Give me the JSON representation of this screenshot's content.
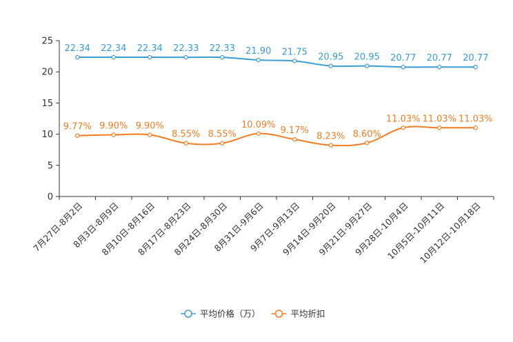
{
  "chart_data": {
    "type": "line",
    "categories": [
      "7月27日-8月2日",
      "8月3日-8月9日",
      "8月10日-8月16日",
      "8月17日-8月23日",
      "8月24日-8月30日",
      "8月31日-9月6日",
      "9月7日-9月13日",
      "9月14日-9月20日",
      "9月21日-9月27日",
      "9月28日-10月4日",
      "10月5日-10月11日",
      "10月12日-10月18日"
    ],
    "series": [
      {
        "name": "平均价格（万）",
        "color": "#3a9bd5",
        "values": [
          22.34,
          22.34,
          22.34,
          22.33,
          22.33,
          21.9,
          21.75,
          20.95,
          20.95,
          20.77,
          20.77,
          20.77
        ],
        "labels": [
          "22.34",
          "22.34",
          "22.34",
          "22.33",
          "22.33",
          "21.90",
          "21.75",
          "20.95",
          "20.95",
          "20.77",
          "20.77",
          "20.77"
        ]
      },
      {
        "name": "平均折扣",
        "color": "#f47b20",
        "values": [
          9.77,
          9.9,
          9.9,
          8.55,
          8.55,
          10.09,
          9.17,
          8.23,
          8.6,
          11.03,
          11.03,
          11.03
        ],
        "labels": [
          "9.77%",
          "9.90%",
          "9.90%",
          "8.55%",
          "8.55%",
          "10.09%",
          "9.17%",
          "8.23%",
          "8.60%",
          "11.03%",
          "11.03%",
          "11.03%"
        ]
      }
    ],
    "ylim": [
      0,
      25
    ],
    "yticks": [
      0,
      5,
      10,
      15,
      20,
      25
    ],
    "ytick_labels": [
      "0",
      "5",
      "10",
      "15",
      "20",
      "25"
    ],
    "grid": false,
    "legend": "bottom-center",
    "title": "",
    "xlabel": "",
    "ylabel": ""
  }
}
